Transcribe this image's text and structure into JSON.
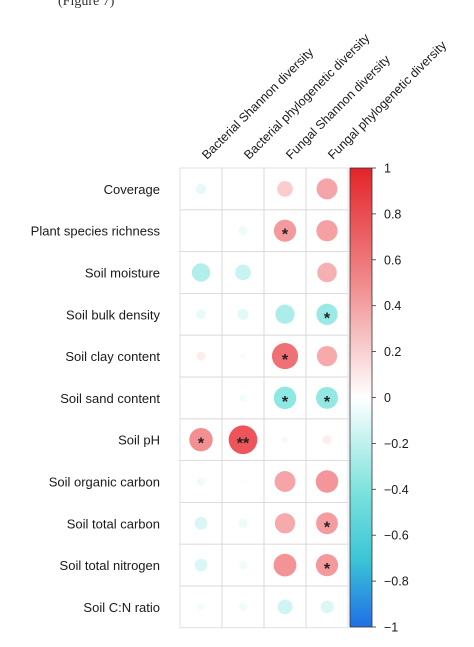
{
  "chart_data": {
    "type": "heatmap",
    "subtype": "correlation-circles",
    "top_text_fragment": "(Figure 7)",
    "columns": [
      "Bacterial Shannon diversity",
      "Bacterial phylogenetic diversity",
      "Fungal Shannon diversity",
      "Fungal phylogenetic diversity"
    ],
    "rows": [
      "Coverage",
      "Plant species richness",
      "Soil moisture",
      "Soil bulk density",
      "Soil clay content",
      "Soil sand content",
      "Soil pH",
      "Soil organic carbon",
      "Soil total carbon",
      "Soil total nitrogen",
      "Soil C:N ratio"
    ],
    "values": [
      [
        -0.08,
        0.0,
        0.18,
        0.32
      ],
      [
        0.0,
        -0.06,
        0.36,
        0.33
      ],
      [
        -0.25,
        -0.18,
        0.0,
        0.28
      ],
      [
        -0.07,
        -0.09,
        -0.27,
        -0.33
      ],
      [
        0.06,
        -0.03,
        0.5,
        0.3
      ],
      [
        0.0,
        -0.04,
        -0.37,
        -0.35
      ],
      [
        0.4,
        0.6,
        0.03,
        0.06
      ],
      [
        -0.05,
        -0.01,
        0.32,
        0.37
      ],
      [
        -0.12,
        -0.06,
        0.3,
        0.35
      ],
      [
        -0.12,
        -0.05,
        0.38,
        0.36
      ],
      [
        -0.04,
        -0.05,
        -0.16,
        -0.12
      ]
    ],
    "significance": [
      [
        "",
        "",
        "",
        ""
      ],
      [
        "",
        "",
        "*",
        ""
      ],
      [
        "",
        "",
        "",
        ""
      ],
      [
        "",
        "",
        "",
        "*"
      ],
      [
        "",
        "",
        "*",
        ""
      ],
      [
        "",
        "",
        "*",
        "*"
      ],
      [
        "*",
        "**",
        "",
        ""
      ],
      [
        "",
        "",
        "",
        ""
      ],
      [
        "",
        "",
        "",
        "*"
      ],
      [
        "",
        "",
        "",
        "*"
      ],
      [
        "",
        "",
        "",
        ""
      ]
    ],
    "colorbar": {
      "ticks": [
        "1",
        "0.8",
        "0.6",
        "0.4",
        "0.2",
        "0",
        "−0.2",
        "−0.4",
        "−0.6",
        "−0.8",
        "−1"
      ],
      "range": [
        -1,
        1
      ],
      "colors": {
        "positive": "#e8252b",
        "zero": "#ffffff",
        "negative": "#1f7fe0",
        "mid_negative": "#3fd6cf"
      }
    }
  }
}
